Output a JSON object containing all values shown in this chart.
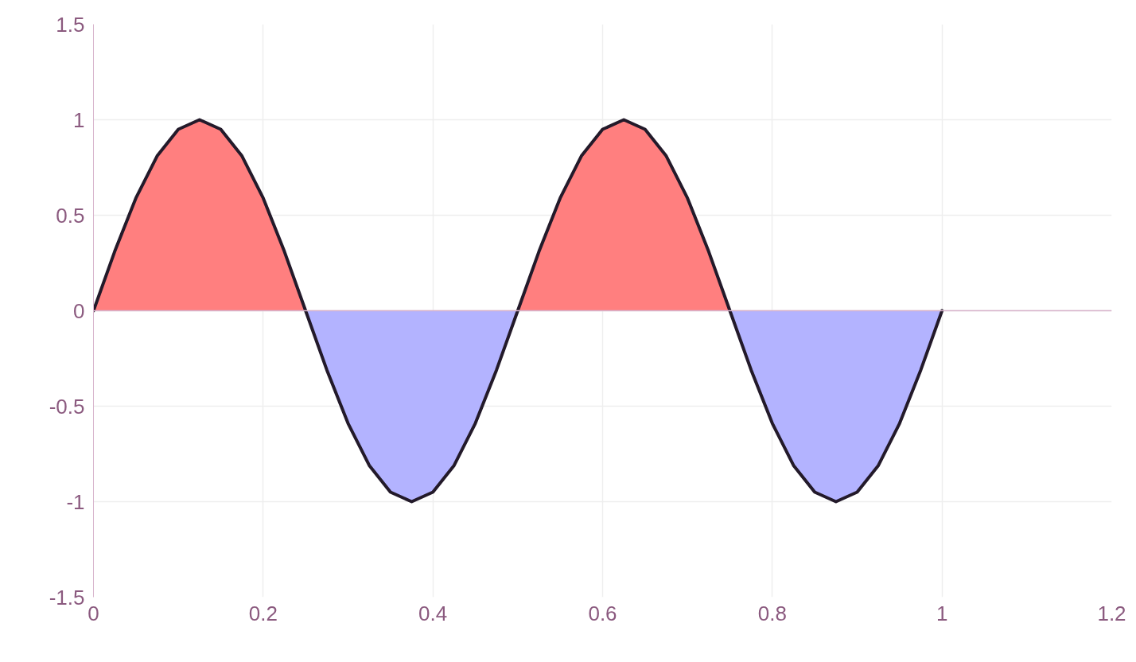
{
  "chart_data": {
    "type": "area",
    "x": [
      0,
      0.025,
      0.05,
      0.075,
      0.1,
      0.125,
      0.15,
      0.175,
      0.2,
      0.225,
      0.25,
      0.275,
      0.3,
      0.325,
      0.35,
      0.375,
      0.4,
      0.425,
      0.45,
      0.475,
      0.5,
      0.525,
      0.55,
      0.575,
      0.6,
      0.625,
      0.65,
      0.675,
      0.7,
      0.725,
      0.75,
      0.775,
      0.8,
      0.825,
      0.85,
      0.875,
      0.9,
      0.925,
      0.95,
      0.975,
      1
    ],
    "series": [
      {
        "color": "#ff7f7f",
        "values": [
          0,
          0.31,
          0.59,
          0.81,
          0.95,
          1,
          0.95,
          0.81,
          0.59,
          0.31,
          0,
          null,
          null,
          null,
          null,
          null,
          null,
          null,
          null,
          null,
          0,
          0.31,
          0.59,
          0.81,
          0.95,
          1,
          0.95,
          0.81,
          0.59,
          0.31,
          0,
          null,
          null,
          null,
          null,
          null,
          null,
          null,
          null,
          null,
          null
        ]
      },
      {
        "color": "#b3b3ff",
        "values": [
          null,
          null,
          null,
          null,
          null,
          null,
          null,
          null,
          null,
          null,
          0,
          -0.31,
          -0.59,
          -0.81,
          -0.95,
          -1,
          -0.95,
          -0.81,
          -0.59,
          -0.31,
          0,
          null,
          null,
          null,
          null,
          null,
          null,
          null,
          null,
          null,
          0,
          -0.31,
          -0.59,
          -0.81,
          -0.95,
          -1,
          -0.95,
          -0.81,
          -0.59,
          -0.31,
          0
        ]
      },
      {
        "type": "line",
        "color": "#231a2a",
        "values": [
          0,
          0.31,
          0.59,
          0.81,
          0.95,
          1,
          0.95,
          0.81,
          0.59,
          0.31,
          0,
          -0.31,
          -0.59,
          -0.81,
          -0.95,
          -1,
          -0.95,
          -0.81,
          -0.59,
          -0.31,
          0,
          0.31,
          0.59,
          0.81,
          0.95,
          1,
          0.95,
          0.81,
          0.59,
          0.31,
          0,
          -0.31,
          -0.59,
          -0.81,
          -0.95,
          -1,
          -0.95,
          -0.81,
          -0.59,
          -0.31,
          0
        ]
      }
    ],
    "xlim": [
      0,
      1.2
    ],
    "xticks": [
      0,
      0.2,
      0.4,
      0.6,
      0.8,
      1,
      1.2
    ],
    "ylim": [
      -1.5,
      1.5
    ],
    "yticks": [
      -1.5,
      -1,
      -0.5,
      0,
      0.5,
      1,
      1.5
    ],
    "ref_lines": [
      {
        "axis": "y",
        "value": 0,
        "color": "#d8b4cc"
      }
    ],
    "grid": true,
    "marker": "none",
    "line_style": "solid"
  }
}
